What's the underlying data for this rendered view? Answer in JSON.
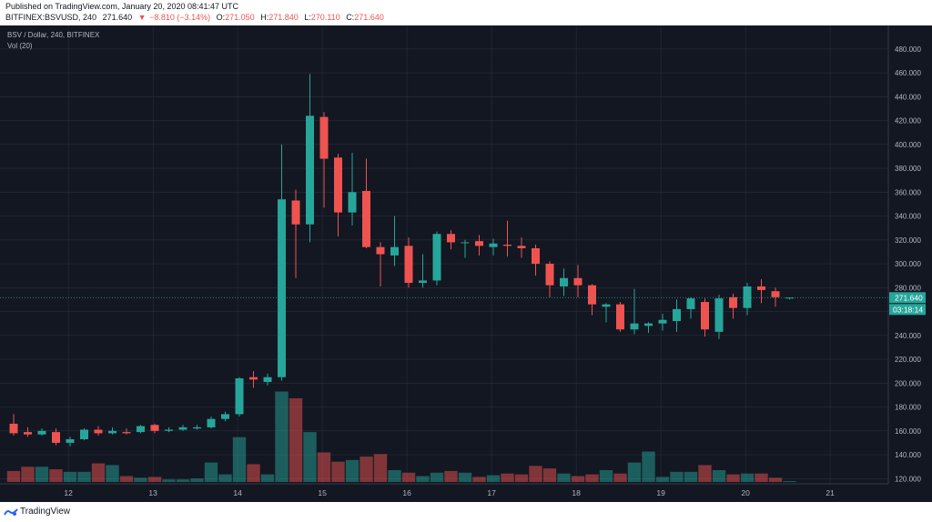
{
  "header": {
    "published": "Published on TradingView.com, January 20, 2020 08:41:47 UTC",
    "symbol": "BITFINEX:BSVUSD, 240",
    "last": "271.640",
    "change_arrow": "▼",
    "change": "−8.810 (−3.14%)",
    "o_label": "O:",
    "o_value": "271.050",
    "h_label": "H:",
    "h_value": "271.840",
    "l_label": "L:",
    "l_value": "270.110",
    "c_label": "C:",
    "c_value": "271.640"
  },
  "legend": {
    "title": "BSV / Dollar, 240, BITFINEX",
    "volume": "Vol (20)"
  },
  "price_badge": "271.640",
  "countdown_badge": "03:18:14",
  "footer": {
    "brand": "TradingView",
    "logo_icon": "tradingview-logo-icon"
  },
  "colors": {
    "up": "#26a69a",
    "down": "#ef5350",
    "background": "#131722",
    "grid": "#2a2e39",
    "text": "#b2b5be"
  },
  "chart_data": {
    "type": "candlestick",
    "title": "BSV / Dollar, 240, BITFINEX",
    "ylim": [
      115,
      488
    ],
    "yticks": [
      120,
      140,
      160,
      180,
      200,
      220,
      240,
      260,
      280,
      300,
      320,
      340,
      360,
      380,
      400,
      420,
      440,
      460,
      480
    ],
    "ytick_labels": [
      "120.000",
      "140.000",
      "160.000",
      "180.000",
      "200.000",
      "220.000",
      "240.000",
      "260.000",
      "280.000",
      "300.000",
      "320.000",
      "340.000",
      "360.000",
      "380.000",
      "400.000",
      "420.000",
      "440.000",
      "460.000",
      "480.000"
    ],
    "xticks": [
      {
        "label": "12",
        "i": 3.88
      },
      {
        "label": "13",
        "i": 9.88
      },
      {
        "label": "14",
        "i": 15.88
      },
      {
        "label": "15",
        "i": 21.88
      },
      {
        "label": "16",
        "i": 27.88
      },
      {
        "label": "17",
        "i": 33.88
      },
      {
        "label": "18",
        "i": 39.88
      },
      {
        "label": "19",
        "i": 45.88
      },
      {
        "label": "20",
        "i": 51.88
      },
      {
        "label": "21",
        "i": 57.88
      }
    ],
    "last_price": 271.64,
    "candles": [
      {
        "o": 166,
        "h": 174,
        "l": 156,
        "c": 158,
        "v": 1.3
      },
      {
        "o": 159,
        "h": 163,
        "l": 155,
        "c": 157,
        "v": 1.8
      },
      {
        "o": 157,
        "h": 162,
        "l": 156,
        "c": 160,
        "v": 1.8
      },
      {
        "o": 159,
        "h": 162,
        "l": 148,
        "c": 150,
        "v": 1.5
      },
      {
        "o": 150,
        "h": 155,
        "l": 147,
        "c": 153,
        "v": 1.2
      },
      {
        "o": 153,
        "h": 162,
        "l": 152,
        "c": 161,
        "v": 1.2
      },
      {
        "o": 161,
        "h": 164,
        "l": 156,
        "c": 158,
        "v": 2.2
      },
      {
        "o": 158,
        "h": 163,
        "l": 157,
        "c": 160,
        "v": 2.0
      },
      {
        "o": 159,
        "h": 162,
        "l": 157,
        "c": 158,
        "v": 0.7
      },
      {
        "o": 159,
        "h": 165,
        "l": 158,
        "c": 164,
        "v": 0.5
      },
      {
        "o": 165,
        "h": 166,
        "l": 158,
        "c": 160,
        "v": 0.6
      },
      {
        "o": 160,
        "h": 163,
        "l": 159,
        "c": 161,
        "v": 0.3
      },
      {
        "o": 161,
        "h": 165,
        "l": 160,
        "c": 163,
        "v": 0.3
      },
      {
        "o": 162,
        "h": 165,
        "l": 161,
        "c": 163,
        "v": 0.4
      },
      {
        "o": 163,
        "h": 172,
        "l": 162,
        "c": 170,
        "v": 2.3
      },
      {
        "o": 170,
        "h": 176,
        "l": 168,
        "c": 174,
        "v": 0.9
      },
      {
        "o": 174,
        "h": 205,
        "l": 172,
        "c": 204,
        "v": 5.3
      },
      {
        "o": 205,
        "h": 210,
        "l": 196,
        "c": 203,
        "v": 2.1
      },
      {
        "o": 201,
        "h": 208,
        "l": 198,
        "c": 205,
        "v": 0.9
      },
      {
        "o": 205,
        "h": 400,
        "l": 202,
        "c": 354,
        "v": 10.7
      },
      {
        "o": 353,
        "h": 362,
        "l": 288,
        "c": 333,
        "v": 9.9
      },
      {
        "o": 333,
        "h": 459,
        "l": 318,
        "c": 424,
        "v": 5.9
      },
      {
        "o": 423,
        "h": 427,
        "l": 347,
        "c": 388,
        "v": 3.5
      },
      {
        "o": 389,
        "h": 392,
        "l": 323,
        "c": 343,
        "v": 2.4
      },
      {
        "o": 343,
        "h": 393,
        "l": 332,
        "c": 360,
        "v": 2.6
      },
      {
        "o": 361,
        "h": 388,
        "l": 313,
        "c": 314,
        "v": 3.0
      },
      {
        "o": 314,
        "h": 318,
        "l": 281,
        "c": 308,
        "v": 3.3
      },
      {
        "o": 307,
        "h": 340,
        "l": 298,
        "c": 314,
        "v": 1.4
      },
      {
        "o": 315,
        "h": 322,
        "l": 280,
        "c": 284,
        "v": 1.1
      },
      {
        "o": 284,
        "h": 308,
        "l": 280,
        "c": 286,
        "v": 0.7
      },
      {
        "o": 286,
        "h": 327,
        "l": 282,
        "c": 325,
        "v": 1.1
      },
      {
        "o": 325,
        "h": 328,
        "l": 312,
        "c": 318,
        "v": 1.3
      },
      {
        "o": 318,
        "h": 320,
        "l": 305,
        "c": 318,
        "v": 1.1
      },
      {
        "o": 319,
        "h": 324,
        "l": 307,
        "c": 315,
        "v": 0.6
      },
      {
        "o": 314,
        "h": 321,
        "l": 307,
        "c": 317,
        "v": 0.8
      },
      {
        "o": 316,
        "h": 336,
        "l": 306,
        "c": 315,
        "v": 1.0
      },
      {
        "o": 315,
        "h": 322,
        "l": 305,
        "c": 313,
        "v": 0.9
      },
      {
        "o": 313,
        "h": 316,
        "l": 290,
        "c": 300,
        "v": 1.9
      },
      {
        "o": 300,
        "h": 302,
        "l": 272,
        "c": 282,
        "v": 1.6
      },
      {
        "o": 281,
        "h": 296,
        "l": 273,
        "c": 288,
        "v": 1.0
      },
      {
        "o": 288,
        "h": 299,
        "l": 272,
        "c": 282,
        "v": 0.7
      },
      {
        "o": 282,
        "h": 283,
        "l": 257,
        "c": 266,
        "v": 0.9
      },
      {
        "o": 264,
        "h": 267,
        "l": 251,
        "c": 266,
        "v": 1.4
      },
      {
        "o": 266,
        "h": 268,
        "l": 243,
        "c": 245,
        "v": 1.0
      },
      {
        "o": 245,
        "h": 279,
        "l": 241,
        "c": 250,
        "v": 2.3
      },
      {
        "o": 248,
        "h": 251,
        "l": 242,
        "c": 250,
        "v": 3.6
      },
      {
        "o": 250,
        "h": 258,
        "l": 244,
        "c": 253,
        "v": 0.6
      },
      {
        "o": 252,
        "h": 270,
        "l": 243,
        "c": 262,
        "v": 1.2
      },
      {
        "o": 262,
        "h": 272,
        "l": 254,
        "c": 271,
        "v": 1.2
      },
      {
        "o": 268,
        "h": 271,
        "l": 239,
        "c": 245,
        "v": 2.0
      },
      {
        "o": 243,
        "h": 274,
        "l": 237,
        "c": 271,
        "v": 1.4
      },
      {
        "o": 272,
        "h": 275,
        "l": 254,
        "c": 263,
        "v": 0.9
      },
      {
        "o": 263,
        "h": 284,
        "l": 257,
        "c": 281,
        "v": 1.0
      },
      {
        "o": 281,
        "h": 287,
        "l": 267,
        "c": 278,
        "v": 1.0
      },
      {
        "o": 277,
        "h": 280,
        "l": 264,
        "c": 272,
        "v": 0.5
      },
      {
        "o": 271.05,
        "h": 271.84,
        "l": 270.11,
        "c": 271.64,
        "v": 0.1
      }
    ]
  }
}
